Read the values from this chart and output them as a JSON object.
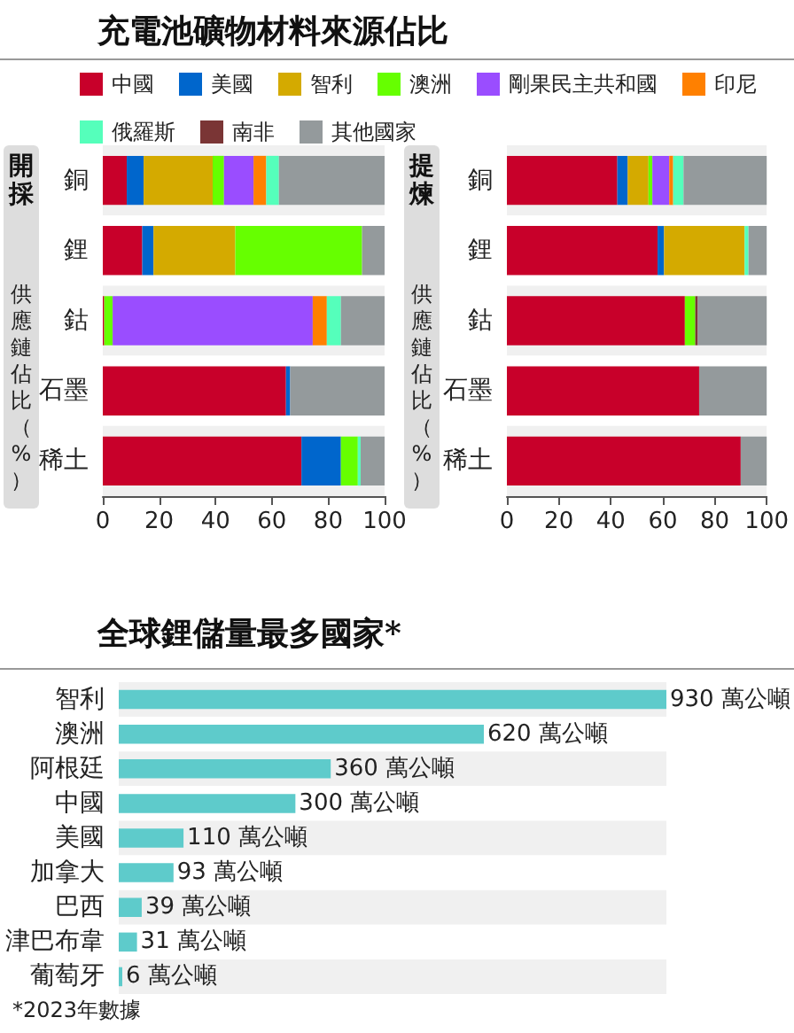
{
  "chart_data": [
    {
      "type": "bar",
      "title": "充電池礦物材料來源佔比",
      "subtitle": "開採",
      "ylabel": "供應鏈佔比（%）",
      "orientation": "horizontal",
      "stacked": true,
      "legend": "top",
      "categories": [
        "銅",
        "鋰",
        "鈷",
        "石墨",
        "稀土"
      ],
      "xlim": [
        0,
        100
      ],
      "xticks": [
        0,
        20,
        40,
        60,
        80,
        100
      ],
      "series": [
        {
          "name": "中國",
          "color": "#c8002a",
          "values": [
            8.5,
            14,
            0.5,
            65,
            70.5
          ]
        },
        {
          "name": "美國",
          "color": "#0066cc",
          "values": [
            6,
            4,
            null,
            1.5,
            14
          ]
        },
        {
          "name": "智利",
          "color": "#d4aa00",
          "values": [
            24.5,
            29,
            null,
            null,
            null
          ]
        },
        {
          "name": "澳洲",
          "color": "#66ff00",
          "values": [
            4,
            45,
            3,
            null,
            6
          ]
        },
        {
          "name": "剛果民主共和國",
          "color": "#9a4dff",
          "values": [
            10.5,
            null,
            71,
            null,
            null
          ]
        },
        {
          "name": "印尼",
          "color": "#ff8000",
          "values": [
            4.5,
            null,
            5,
            null,
            null
          ]
        },
        {
          "name": "俄羅斯",
          "color": "#55ffbb",
          "values": [
            4.5,
            null,
            5,
            null,
            1
          ]
        },
        {
          "name": "南非",
          "color": "#7a3535",
          "values": [
            null,
            null,
            null,
            null,
            null
          ]
        },
        {
          "name": "其他國家",
          "color": "#949a9c",
          "values": [
            37.5,
            8,
            15.5,
            33.5,
            8.5
          ]
        }
      ]
    },
    {
      "type": "bar",
      "subtitle": "提煉",
      "ylabel": "供應鏈佔比（%）",
      "orientation": "horizontal",
      "stacked": true,
      "categories": [
        "銅",
        "鋰",
        "鈷",
        "石墨",
        "稀土"
      ],
      "xlim": [
        0,
        100
      ],
      "xticks": [
        0,
        20,
        40,
        60,
        80,
        100
      ],
      "series": [
        {
          "color": "#c8002a",
          "values": [
            42.5,
            58,
            68.5,
            74,
            90
          ]
        },
        {
          "color": "#0066cc",
          "values": [
            4,
            2.5,
            null,
            null,
            null
          ]
        },
        {
          "color": "#d4aa00",
          "values": [
            8,
            31,
            null,
            null,
            null
          ]
        },
        {
          "color": "#66ff00",
          "values": [
            1.5,
            null,
            4,
            null,
            null
          ]
        },
        {
          "color": "#9a4dff",
          "values": [
            6.5,
            null,
            null,
            null,
            null
          ]
        },
        {
          "color": "#ff8000",
          "values": [
            1.5,
            null,
            null,
            null,
            null
          ]
        },
        {
          "color": "#55ffbb",
          "values": [
            4,
            1.5,
            null,
            null,
            null
          ]
        },
        {
          "color": "#7a3535",
          "values": [
            null,
            null,
            1,
            null,
            null
          ]
        },
        {
          "color": "#949a9c",
          "values": [
            32,
            7,
            26.5,
            26,
            10
          ]
        }
      ]
    },
    {
      "type": "bar",
      "title": "全球鋰儲量最多國家*",
      "orientation": "horizontal",
      "categories": [
        "智利",
        "澳洲",
        "阿根廷",
        "中國",
        "美國",
        "加拿大",
        "巴西",
        "津巴布韋",
        "葡萄牙"
      ],
      "series": [
        {
          "color": "#5ecbcb",
          "values": [
            930,
            620,
            360,
            300,
            110,
            93,
            39,
            31,
            6
          ],
          "value_labels": [
            "930 萬公噸",
            "620 萬公噸",
            "360 萬公噸",
            "300 萬公噸",
            "110 萬公噸",
            "93 萬公噸",
            "39 萬公噸",
            "31 萬公噸",
            "6 萬公噸"
          ]
        }
      ],
      "annotations": [
        "*2023年數據"
      ]
    }
  ]
}
